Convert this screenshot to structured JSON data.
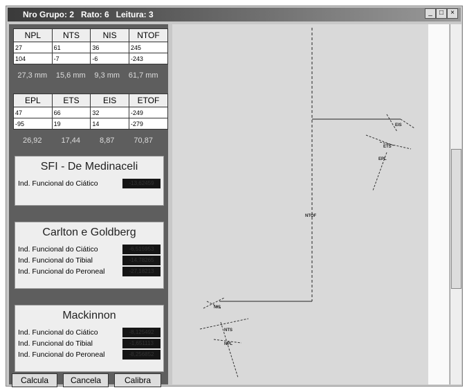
{
  "window": {
    "title": "Nro Grupo: 2   Rato: 6   Leitura: 3"
  },
  "table_n": {
    "headers": [
      "NPL",
      "NTS",
      "NIS",
      "NTOF"
    ],
    "rows": [
      [
        "27",
        "61",
        "36",
        "245"
      ],
      [
        "104",
        "-7",
        "-6",
        "-243"
      ]
    ],
    "measures": [
      "27,3 mm",
      "15,6 mm",
      "9,3 mm",
      "61,7 mm"
    ]
  },
  "table_e": {
    "headers": [
      "EPL",
      "ETS",
      "EIS",
      "ETOF"
    ],
    "rows": [
      [
        "47",
        "66",
        "32",
        "-249"
      ],
      [
        "-95",
        "19",
        "14",
        "-279"
      ]
    ],
    "measures": [
      "26,92",
      "17,44",
      "8,87",
      "70,87"
    ]
  },
  "panels": [
    {
      "title": "SFI - De Medinaceli",
      "rows": [
        {
          "label": "Ind. Funcional do Ciático",
          "value": "-13,62459"
        }
      ]
    },
    {
      "title": "Carlton e Goldberg",
      "rows": [
        {
          "label": "Ind. Funcional do Ciático",
          "value": "-6,515953"
        },
        {
          "label": "Ind. Funcional do Tibial",
          "value": "-14,78265"
        },
        {
          "label": "Ind. Funcional do Peroneal",
          "value": "-27,18213"
        }
      ]
    },
    {
      "title": "Mackinnon",
      "rows": [
        {
          "label": "Ind. Funcional do Ciático",
          "value": "-8,125492"
        },
        {
          "label": "Ind. Funcional do Tibial",
          "value": "-1,651113"
        },
        {
          "label": "Ind. Funcional do Peroneal",
          "value": "-8,256852"
        }
      ]
    }
  ],
  "buttons": [
    "Calcula",
    "Cancela",
    "Calibra"
  ],
  "image_labels": [
    "EIS",
    "ETS",
    "EPL",
    "NTOF",
    "NIS",
    "NTS",
    "NPL"
  ]
}
